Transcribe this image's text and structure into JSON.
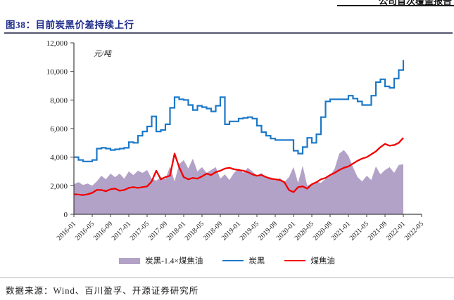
{
  "page_header": {
    "report_type": "公司首次覆盖报告"
  },
  "figure": {
    "title": "图38：目前炭黑价差持续上行"
  },
  "source": {
    "text": "数据来源：Wind、百川盈孚、开源证券研究所"
  },
  "chart_data": {
    "type": "line",
    "title": "目前炭黑价差持续上行",
    "unit_label": "元/吨",
    "ylim": [
      0,
      12000
    ],
    "grid": false,
    "legend_position": "bottom",
    "x_start": "2016-01",
    "x_interval_months": 1,
    "x_tick_interval_months": 4,
    "x_axis_ticks": [
      "2016-01",
      "2016-05",
      "2016-09",
      "2017-01",
      "2017-05",
      "2017-09",
      "2018-01",
      "2018-05",
      "2018-09",
      "2019-01",
      "2019-05",
      "2019-09",
      "2020-01",
      "2020-05",
      "2020-09",
      "2021-01",
      "2021-05",
      "2021-09",
      "2022-01",
      "2022-05"
    ],
    "y_ticks": [
      {
        "v": 0,
        "label": "0"
      },
      {
        "v": 2000,
        "label": "2,000"
      },
      {
        "v": 4000,
        "label": "4,000"
      },
      {
        "v": 6000,
        "label": "6,000"
      },
      {
        "v": 8000,
        "label": "8,000"
      },
      {
        "v": 10000,
        "label": "10,000"
      },
      {
        "v": 12000,
        "label": "12,000"
      }
    ],
    "series": [
      {
        "name": "炭黑-1.4×煤焦油",
        "type": "area",
        "color": "#b3a2c7",
        "values": [
          2100,
          2250,
          2050,
          2150,
          2000,
          2300,
          2700,
          2450,
          2850,
          2600,
          2850,
          2500,
          3000,
          2750,
          3050,
          2900,
          3100,
          2500,
          2350,
          2600,
          2450,
          3350,
          2300,
          3500,
          3800,
          3200,
          3900,
          3000,
          3300,
          2900,
          3100,
          3300,
          2500,
          2800,
          2400,
          2900,
          3200,
          2900,
          3250,
          3000,
          2700,
          2900,
          2500,
          2600,
          2350,
          2550,
          2250,
          2600,
          3300,
          2200,
          3400,
          2000,
          2150,
          2300,
          2200,
          2500,
          2700,
          3200,
          4250,
          4500,
          4100,
          3300,
          2600,
          2300,
          2700,
          2400,
          3350,
          2800,
          3100,
          3300,
          2900,
          3450,
          3500
        ]
      },
      {
        "name": "炭黑",
        "type": "step-line",
        "color": "#1b78c8",
        "values": [
          4000,
          3800,
          3700,
          3700,
          3800,
          4600,
          4650,
          4600,
          4500,
          4550,
          4600,
          4650,
          5050,
          5000,
          5500,
          5800,
          6150,
          6850,
          5800,
          5900,
          6300,
          7450,
          8200,
          8050,
          8000,
          7650,
          7300,
          7600,
          7500,
          7400,
          7200,
          7600,
          8200,
          6300,
          6500,
          6500,
          6700,
          6750,
          6800,
          6700,
          6200,
          5750,
          5500,
          5300,
          5200,
          5200,
          5200,
          5200,
          4450,
          4250,
          4700,
          5350,
          5000,
          5600,
          6800,
          7900,
          8050,
          8050,
          8050,
          8050,
          8300,
          8100,
          7900,
          7650,
          7650,
          8300,
          9250,
          9450,
          8950,
          8850,
          9500,
          10100,
          10800
        ]
      },
      {
        "name": "煤焦油",
        "type": "line",
        "color": "#f20000",
        "values": [
          1400,
          1380,
          1350,
          1400,
          1500,
          1700,
          1700,
          1620,
          1750,
          1800,
          1650,
          1700,
          1850,
          1900,
          1850,
          1900,
          1950,
          2300,
          3050,
          2450,
          2600,
          2700,
          4250,
          3300,
          2600,
          2450,
          2550,
          2500,
          2650,
          2850,
          2750,
          2950,
          3050,
          3200,
          3250,
          3150,
          3100,
          3050,
          2950,
          2800,
          2700,
          2750,
          2600,
          2500,
          2450,
          2400,
          2250,
          1700,
          1550,
          1900,
          1950,
          1800,
          2100,
          2250,
          2450,
          2550,
          2750,
          2900,
          3100,
          3250,
          3350,
          3550,
          3750,
          3900,
          4000,
          4200,
          4400,
          4700,
          4930,
          4800,
          4850,
          5000,
          5350
        ]
      }
    ]
  }
}
